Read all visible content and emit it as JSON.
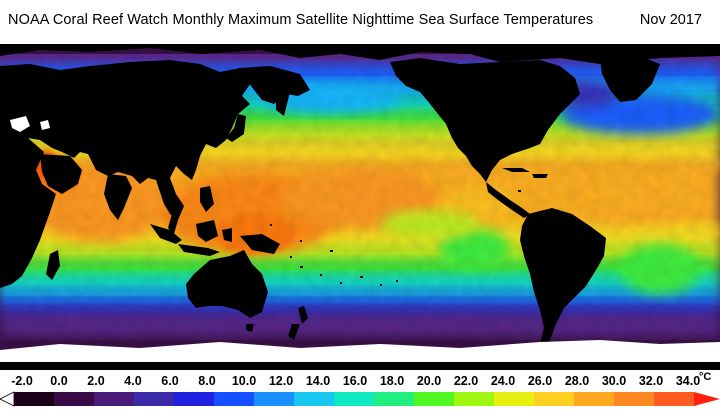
{
  "header": {
    "title": "NOAA Coral Reef Watch Monthly Maximum Satellite Nighttime Sea Surface Temperatures",
    "date": "Nov 2017"
  },
  "colorbar": {
    "unit": "°C",
    "ticks": [
      "-2.0",
      "0.0",
      "2.0",
      "4.0",
      "6.0",
      "8.0",
      "10.0",
      "12.0",
      "14.0",
      "16.0",
      "18.0",
      "20.0",
      "22.0",
      "24.0",
      "26.0",
      "28.0",
      "30.0",
      "32.0",
      "34.0"
    ],
    "range": [
      -2.0,
      34.0
    ],
    "colors": [
      "#ffffff",
      "#1a0018",
      "#3a0a48",
      "#4a1a78",
      "#3a2aa8",
      "#2020e0",
      "#1450ff",
      "#1a90ff",
      "#18c8f0",
      "#10e8c0",
      "#20f080",
      "#50f820",
      "#a0f810",
      "#e8f010",
      "#ffd020",
      "#ffa820",
      "#ff8820",
      "#ff5a20",
      "#ff2010"
    ]
  },
  "map": {
    "land_color": "#000000",
    "ice_color": "#ffffff",
    "palette": {
      "warm": "#ff9a20",
      "hot": "#ff7a10",
      "yellow": "#f8e020",
      "yellowgreen": "#c0f020",
      "green": "#40f040",
      "cyan": "#10e8d0",
      "lightblue": "#18b8ff",
      "blue": "#1a60ff",
      "indigo": "#3a30c0",
      "purple": "#5a2a90",
      "darkpurple": "#3a1048"
    }
  }
}
